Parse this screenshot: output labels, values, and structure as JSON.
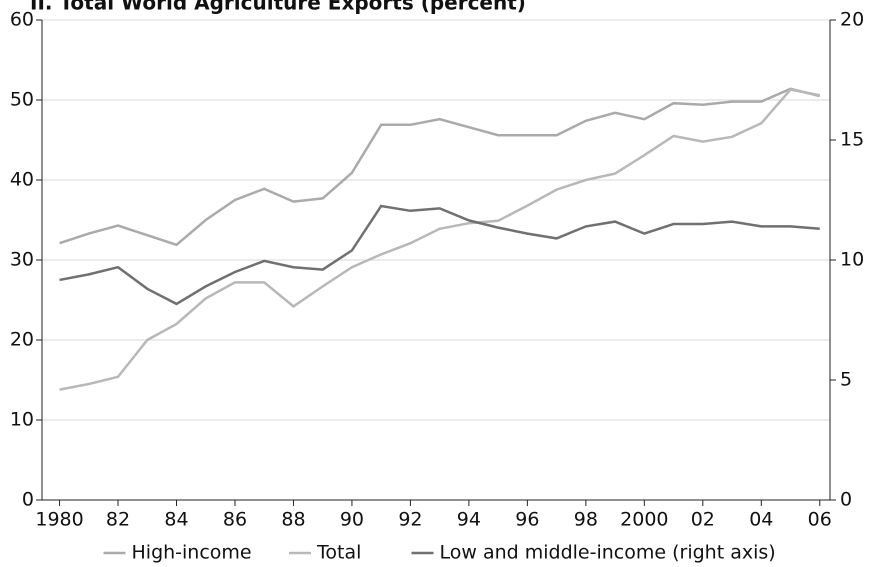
{
  "chart_data": {
    "type": "line",
    "title": "II. Total World Agriculture Exports (percent)",
    "x": [
      1980,
      1981,
      1982,
      1983,
      1984,
      1985,
      1986,
      1987,
      1988,
      1989,
      1990,
      1991,
      1992,
      1993,
      1994,
      1995,
      1996,
      1997,
      1998,
      1999,
      2000,
      2001,
      2002,
      2003,
      2004,
      2005,
      2006
    ],
    "xlim": [
      1979.4,
      2006.35
    ],
    "xticks": [
      {
        "value": 1980,
        "label": "1980"
      },
      {
        "value": 1982,
        "label": "82"
      },
      {
        "value": 1984,
        "label": "84"
      },
      {
        "value": 1986,
        "label": "86"
      },
      {
        "value": 1988,
        "label": "88"
      },
      {
        "value": 1990,
        "label": "90"
      },
      {
        "value": 1992,
        "label": "92"
      },
      {
        "value": 1994,
        "label": "94"
      },
      {
        "value": 1996,
        "label": "96"
      },
      {
        "value": 1998,
        "label": "98"
      },
      {
        "value": 2000,
        "label": "2000"
      },
      {
        "value": 2002,
        "label": "02"
      },
      {
        "value": 2004,
        "label": "04"
      },
      {
        "value": 2006,
        "label": "06"
      }
    ],
    "ylim": [
      0,
      60
    ],
    "yticks": [
      0,
      10,
      20,
      30,
      40,
      50,
      60
    ],
    "y2lim": [
      0,
      20
    ],
    "y2ticks": [
      0,
      5,
      10,
      15,
      20
    ],
    "grid": true,
    "series": [
      {
        "name": "High-income",
        "color": "#aaaaaa",
        "values": [
          32.1,
          33.3,
          34.3,
          33.1,
          31.9,
          35,
          37.5,
          38.9,
          37.3,
          37.7,
          40.9,
          46.9,
          46.9,
          47.6,
          46.6,
          45.6,
          45.6,
          45.6,
          47.4,
          48.4,
          47.6,
          49.6,
          49.4,
          49.8,
          49.8,
          51.4,
          50.5
        ]
      },
      {
        "name": "Total",
        "color": "#b8b8b8",
        "values": [
          13.8,
          14.5,
          15.4,
          20,
          22,
          25.2,
          27.2,
          27.2,
          24.2,
          26.7,
          29.1,
          30.7,
          32.1,
          33.9,
          34.6,
          34.9,
          36.8,
          38.8,
          40,
          40.8,
          43.1,
          45.5,
          44.8,
          45.4,
          47.1,
          51.3,
          50.6
        ]
      },
      {
        "name": "Low and middle-income (right axis)",
        "color": "#707070",
        "axis": "y2",
        "values": [
          9.17,
          9.4,
          9.7,
          8.8,
          8.17,
          8.9,
          9.5,
          9.96,
          9.7,
          9.6,
          10.4,
          12.25,
          12.05,
          12.15,
          11.65,
          11.35,
          11.1,
          10.9,
          11.4,
          11.6,
          11.1,
          11.5,
          11.5,
          11.6,
          11.4,
          11.4,
          11.3
        ]
      }
    ]
  }
}
